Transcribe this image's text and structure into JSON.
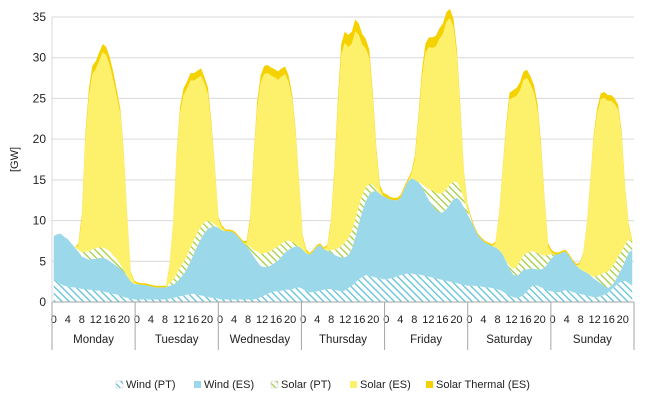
{
  "chart_data": {
    "type": "area",
    "stacked": true,
    "ylabel": "[GW]",
    "ylim": [
      0,
      35
    ],
    "yticks": [
      0,
      5,
      10,
      15,
      20,
      25,
      30,
      35
    ],
    "grid": true,
    "legend_position": "bottom",
    "days": [
      "Monday",
      "Tuesday",
      "Wednesday",
      "Thursday",
      "Friday",
      "Saturday",
      "Sunday"
    ],
    "hour_tick_labels": [
      "0",
      "4",
      "8",
      "12",
      "16",
      "20"
    ],
    "colors": {
      "wind_pt": "#5fc2d8",
      "wind_es": "#9ad8ea",
      "solar_pt": "#c6e07a",
      "solar_es": "#fdf16c",
      "solar_thermal_es": "#f6d100",
      "grid": "#d9d9d9",
      "axis": "#a6a6a6"
    },
    "series": [
      {
        "name": "Wind (PT)",
        "pattern": "hatched",
        "values": [
          2.8,
          2.5,
          2.2,
          2.0,
          1.9,
          1.8,
          1.8,
          1.7,
          1.6,
          1.6,
          1.5,
          1.5,
          1.4,
          1.4,
          1.3,
          1.2,
          1.1,
          1.0,
          0.9,
          0.8,
          0.6,
          0.5,
          0.4,
          0.3,
          0.3,
          0.3,
          0.3,
          0.3,
          0.3,
          0.3,
          0.3,
          0.3,
          0.3,
          0.4,
          0.5,
          0.6,
          0.7,
          0.8,
          0.9,
          1.0,
          1.0,
          0.9,
          0.8,
          0.7,
          0.6,
          0.5,
          0.5,
          0.4,
          0.3,
          0.3,
          0.3,
          0.3,
          0.3,
          0.3,
          0.3,
          0.3,
          0.3,
          0.3,
          0.4,
          0.6,
          0.8,
          1.0,
          1.2,
          1.3,
          1.3,
          1.4,
          1.5,
          1.5,
          1.6,
          1.7,
          1.8,
          1.6,
          1.3,
          1.2,
          1.2,
          1.3,
          1.4,
          1.5,
          1.6,
          1.6,
          1.5,
          1.4,
          1.3,
          1.4,
          1.7,
          2.0,
          2.4,
          2.8,
          3.1,
          3.3,
          3.2,
          3.1,
          3.0,
          2.9,
          2.8,
          2.8,
          2.9,
          3.0,
          3.2,
          3.3,
          3.4,
          3.5,
          3.5,
          3.4,
          3.4,
          3.3,
          3.2,
          3.1,
          3.0,
          2.9,
          2.8,
          2.7,
          2.6,
          2.5,
          2.4,
          2.3,
          2.2,
          2.1,
          2.0,
          2.0,
          2.0,
          1.9,
          1.9,
          1.8,
          1.8,
          1.7,
          1.6,
          1.5,
          1.3,
          1.0,
          0.8,
          0.6,
          0.5,
          0.6,
          0.9,
          1.3,
          1.8,
          2.1,
          2.0,
          1.8,
          1.6,
          1.4,
          1.3,
          1.2,
          1.2,
          1.3,
          1.5,
          1.4,
          1.2,
          1.1,
          1.0,
          0.9,
          0.8,
          0.7,
          0.6,
          0.6,
          0.7,
          0.9,
          1.1,
          1.5,
          1.9,
          2.3,
          2.5,
          2.6,
          2.3,
          2.0
        ]
      },
      {
        "name": "Wind (ES)",
        "pattern": "solid",
        "values": [
          5.3,
          5.8,
          6.2,
          6.0,
          5.8,
          5.4,
          4.9,
          4.5,
          4.0,
          3.8,
          3.7,
          3.8,
          3.9,
          4.0,
          4.1,
          4.1,
          3.9,
          3.7,
          3.5,
          3.3,
          3.1,
          2.6,
          2.1,
          1.9,
          1.9,
          1.8,
          1.8,
          1.7,
          1.6,
          1.5,
          1.5,
          1.5,
          1.5,
          1.6,
          1.6,
          1.8,
          2.2,
          2.6,
          3.2,
          4.0,
          5.0,
          6.0,
          7.0,
          7.8,
          8.4,
          8.7,
          8.8,
          8.7,
          8.5,
          8.4,
          8.4,
          8.3,
          8.0,
          7.5,
          7.0,
          6.5,
          6.0,
          5.3,
          4.6,
          3.8,
          3.5,
          3.3,
          3.3,
          3.5,
          3.8,
          4.2,
          4.6,
          4.9,
          5.1,
          5.1,
          5.0,
          4.8,
          4.7,
          4.6,
          5.0,
          5.5,
          5.6,
          5.0,
          4.7,
          4.5,
          4.3,
          4.2,
          4.2,
          4.1,
          4.0,
          4.5,
          5.5,
          6.8,
          8.0,
          9.1,
          10.0,
          10.5,
          10.6,
          10.4,
          10.2,
          10.0,
          9.7,
          9.5,
          9.3,
          9.6,
          10.5,
          11.3,
          11.7,
          11.6,
          11.3,
          10.9,
          10.1,
          9.4,
          8.9,
          8.4,
          8.2,
          8.3,
          8.8,
          9.5,
          10.2,
          10.5,
          10.2,
          9.5,
          8.8,
          8.0,
          7.1,
          6.3,
          5.8,
          5.5,
          5.3,
          5.2,
          5.1,
          4.9,
          4.6,
          4.0,
          3.3,
          2.8,
          2.7,
          2.9,
          3.1,
          2.7,
          2.3,
          2.0,
          2.0,
          2.2,
          2.6,
          3.4,
          4.1,
          4.6,
          4.7,
          4.8,
          4.7,
          4.3,
          3.8,
          3.4,
          3.1,
          2.9,
          2.8,
          2.6,
          2.3,
          2.0,
          1.6,
          1.1,
          0.6,
          0.5,
          0.6,
          1.0,
          1.6,
          2.5,
          3.8,
          4.4,
          4.7,
          4.9
        ]
      },
      {
        "name": "Solar (PT)",
        "pattern": "hatched",
        "values": [
          0,
          0,
          0,
          0,
          0,
          0,
          0,
          0.2,
          0.5,
          0.8,
          1.0,
          1.2,
          1.3,
          1.3,
          1.3,
          1.2,
          1.2,
          1.0,
          0.8,
          0.5,
          0.2,
          0,
          0,
          0,
          0,
          0,
          0,
          0,
          0,
          0,
          0,
          0,
          0,
          0.3,
          0.6,
          1.0,
          1.3,
          1.5,
          1.6,
          1.7,
          1.7,
          1.6,
          1.5,
          1.3,
          1.0,
          0.6,
          0.2,
          0,
          0,
          0,
          0,
          0,
          0,
          0,
          0,
          0.2,
          0.5,
          0.8,
          1.2,
          1.5,
          1.7,
          1.8,
          1.8,
          1.8,
          1.7,
          1.6,
          1.4,
          1.1,
          0.7,
          0.3,
          0,
          0,
          0,
          0,
          0,
          0,
          0,
          0,
          0,
          0.3,
          0.6,
          1.0,
          1.4,
          1.8,
          2.1,
          2.2,
          2.3,
          2.2,
          2.0,
          1.7,
          1.3,
          0.8,
          0.3,
          0,
          0,
          0,
          0,
          0,
          0,
          0,
          0,
          0,
          0,
          0,
          0,
          0.3,
          0.8,
          1.3,
          1.8,
          2.1,
          2.3,
          2.4,
          2.5,
          2.4,
          2.2,
          1.9,
          1.5,
          1.0,
          0.5,
          0.2,
          0,
          0,
          0,
          0,
          0,
          0,
          0,
          0,
          0,
          0,
          0.3,
          0.7,
          1.1,
          1.5,
          1.8,
          2.0,
          2.1,
          2.1,
          2.0,
          1.8,
          1.5,
          1.0,
          0.5,
          0,
          0,
          0,
          0,
          0,
          0,
          0,
          0,
          0,
          0,
          0,
          0.2,
          0.6,
          1.1,
          1.6,
          2.0,
          2.2,
          2.3,
          2.3,
          2.2,
          2.0,
          1.6,
          1.0,
          0.4,
          0.1,
          0
        ]
      },
      {
        "name": "Solar (ES)",
        "pattern": "solid",
        "values": [
          0,
          0,
          0,
          0,
          0,
          0,
          0,
          0.5,
          4.0,
          13.5,
          19.0,
          21.5,
          22.0,
          23.0,
          24.0,
          23.8,
          22.8,
          21.5,
          20.0,
          18.5,
          14.0,
          7.0,
          1.0,
          0.2,
          0,
          0,
          0,
          0,
          0,
          0,
          0,
          0,
          0,
          2.0,
          6.5,
          14.0,
          19.0,
          20.5,
          20.5,
          20.5,
          19.5,
          19.0,
          18.5,
          17.0,
          15.5,
          11.5,
          6.5,
          1.0,
          0.3,
          0,
          0,
          0,
          0,
          0,
          0,
          0.2,
          3.0,
          11.0,
          17.5,
          21.0,
          22.0,
          22.0,
          21.5,
          21.0,
          20.5,
          20.5,
          20.5,
          19.5,
          17.5,
          13.5,
          7.5,
          1.5,
          0.2,
          0,
          0,
          0,
          0,
          0,
          0.5,
          3.0,
          9.0,
          17.0,
          23.5,
          24.5,
          23.5,
          23.0,
          23.0,
          21.0,
          18.5,
          17.0,
          15.5,
          10.5,
          4.5,
          0.6,
          0,
          0,
          0,
          0,
          0,
          0,
          0,
          0,
          0.5,
          2.5,
          7.5,
          13.0,
          16.5,
          17.5,
          17.5,
          18.0,
          19.0,
          19.5,
          20.5,
          20.5,
          19.0,
          15.5,
          9.5,
          3.0,
          0.5,
          0,
          0,
          0,
          0,
          0,
          0,
          0,
          0.5,
          4.0,
          10.0,
          16.0,
          20.5,
          21.0,
          21.0,
          21.0,
          21.5,
          21.5,
          20.5,
          19.5,
          17.5,
          13.0,
          6.5,
          1.0,
          0.2,
          0,
          0,
          0,
          0,
          0,
          0,
          0,
          0.5,
          2.0,
          5.5,
          11.0,
          17.0,
          20.0,
          21.5,
          21.5,
          21.0,
          20.5,
          19.5,
          18.0,
          14.0,
          6.5,
          1.5,
          0
        ]
      },
      {
        "name": "Solar Thermal (ES)",
        "pattern": "solid",
        "values": [
          0,
          0,
          0,
          0,
          0,
          0,
          0,
          0.3,
          0.6,
          0.8,
          0.9,
          1.0,
          1.0,
          1.0,
          1.0,
          1.0,
          1.0,
          1.0,
          0.8,
          0.6,
          0.4,
          0.3,
          0.2,
          0.2,
          0.2,
          0.2,
          0.2,
          0.2,
          0.2,
          0.2,
          0.2,
          0.2,
          0.2,
          0.2,
          0.3,
          0.5,
          0.7,
          0.8,
          0.9,
          0.9,
          0.9,
          0.9,
          0.9,
          0.8,
          0.8,
          0.6,
          0.4,
          0.3,
          0.3,
          0.2,
          0.2,
          0.2,
          0.2,
          0.2,
          0.2,
          0.3,
          0.5,
          0.6,
          0.8,
          0.9,
          1.0,
          1.0,
          1.0,
          1.0,
          1.0,
          1.0,
          0.9,
          0.8,
          0.6,
          0.5,
          0.4,
          0.3,
          0.3,
          0.2,
          0.2,
          0.2,
          0.2,
          0.2,
          0.2,
          0.4,
          0.7,
          1.0,
          1.3,
          1.4,
          1.5,
          1.5,
          1.5,
          1.4,
          1.3,
          1.2,
          1.0,
          0.8,
          0.6,
          0.5,
          0.4,
          0.4,
          0.3,
          0.3,
          0.3,
          0.3,
          0.3,
          0.3,
          0.3,
          0.5,
          0.7,
          0.9,
          1.1,
          1.2,
          1.3,
          1.3,
          1.3,
          1.3,
          1.2,
          1.1,
          1.0,
          0.8,
          0.6,
          0.4,
          0.3,
          0.3,
          0.2,
          0.2,
          0.2,
          0.2,
          0.2,
          0.2,
          0.2,
          0.3,
          0.4,
          0.6,
          0.8,
          0.9,
          1.0,
          1.0,
          1.0,
          1.0,
          1.0,
          0.9,
          0.8,
          0.6,
          0.5,
          0.4,
          0.3,
          0.3,
          0.2,
          0.2,
          0.2,
          0.2,
          0.2,
          0.2,
          0.2,
          0.2,
          0.3,
          0.4,
          0.5,
          0.6,
          0.7,
          0.7,
          0.7,
          0.7,
          0.7,
          0.6,
          0.5,
          0.4,
          0.3,
          0.2,
          0.2
        ]
      }
    ]
  }
}
